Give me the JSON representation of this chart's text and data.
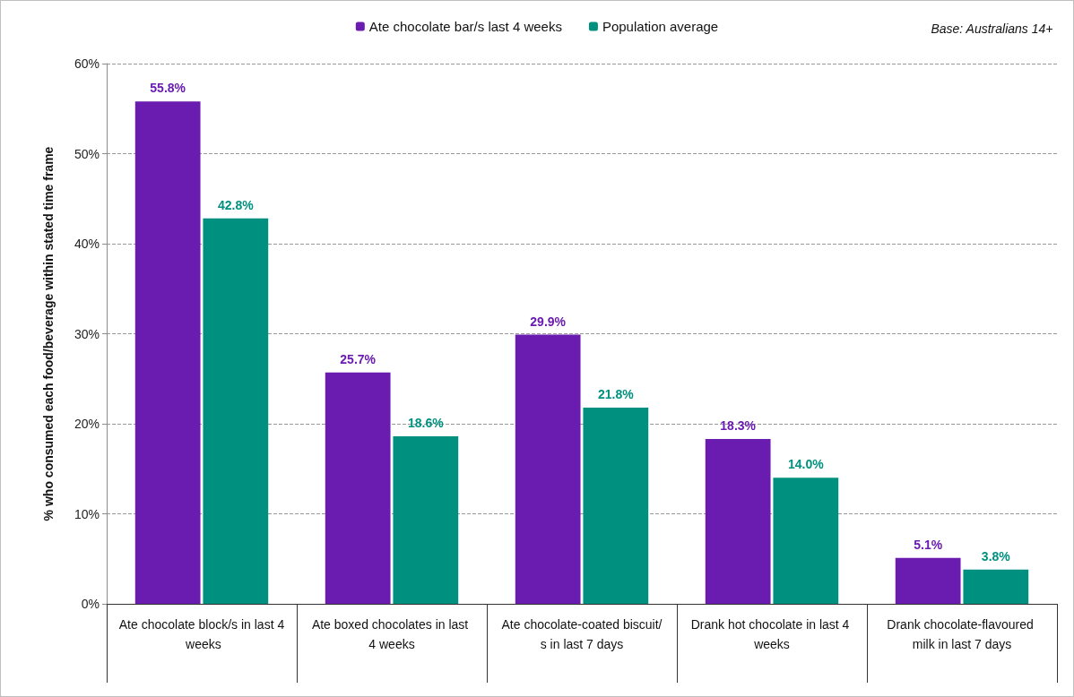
{
  "chart_data": {
    "type": "bar",
    "ylabel": "% who consumed each food/beverage within stated time frame",
    "annotations": [
      "Base: Australians 14+"
    ],
    "categories": [
      "Ate chocolate block/s in last 4 weeks",
      "Ate boxed chocolates in last 4 weeks",
      "Ate chocolate-coated biscuit/s in last 7 days",
      "Drank hot chocolate in last 4 weeks",
      "Drank chocolate-flavoured milk in last 7 days"
    ],
    "series": [
      {
        "name": "Ate chocolate bar/s last 4 weeks",
        "color": "#6a1bb0",
        "values": [
          55.8,
          25.7,
          29.9,
          18.3,
          5.1
        ],
        "value_labels": [
          "55.8%",
          "25.7%",
          "29.9%",
          "18.3%",
          "5.1%"
        ]
      },
      {
        "name": "Population average",
        "color": "#00907f",
        "values": [
          42.8,
          18.6,
          21.8,
          14.0,
          3.8
        ],
        "value_labels": [
          "42.8%",
          "18.6%",
          "21.8%",
          "14.0%",
          "3.8%"
        ]
      }
    ],
    "ylim": [
      0,
      60
    ],
    "yticks": [
      {
        "value": 0,
        "label": "0%"
      },
      {
        "value": 10,
        "label": "10%"
      },
      {
        "value": 20,
        "label": "20%"
      },
      {
        "value": 30,
        "label": "30%"
      },
      {
        "value": 40,
        "label": "40%"
      },
      {
        "value": 50,
        "label": "50%"
      },
      {
        "value": 60,
        "label": "60%"
      }
    ],
    "grid": "y",
    "legend": "top"
  }
}
